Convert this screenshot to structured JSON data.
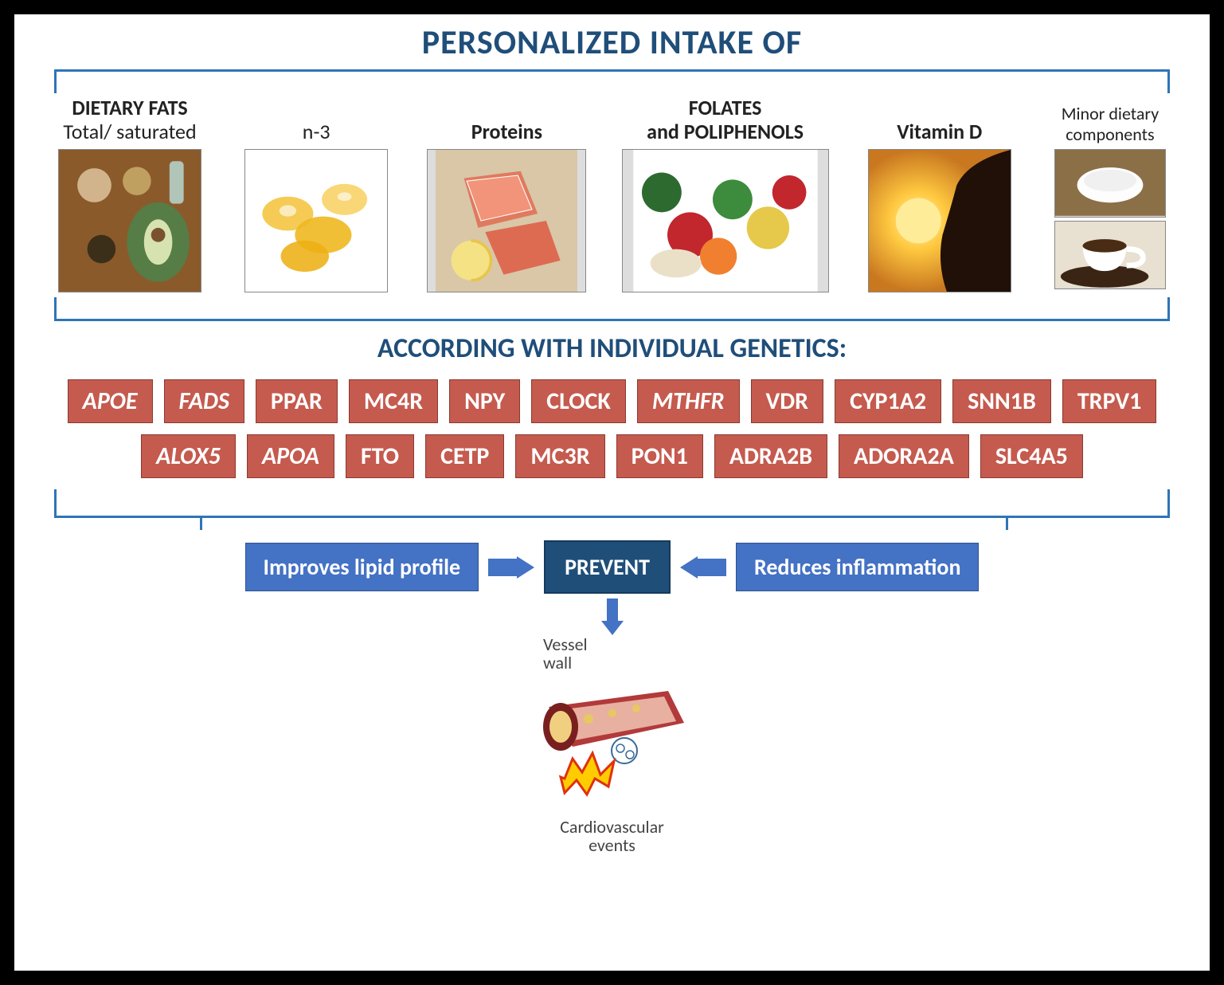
{
  "title": "PERSONALIZED INTAKE OF",
  "food_categories": [
    {
      "group": "DIETARY FATS",
      "label": "Total/ saturated",
      "img": "fats"
    },
    {
      "group": "",
      "label": "n-3",
      "img": "n3"
    },
    {
      "group": "",
      "bold": "Proteins",
      "img": "proteins"
    },
    {
      "group": "",
      "bold": "FOLATES",
      "sub": "and POLIPHENOLS",
      "img": "folates"
    },
    {
      "group": "",
      "bold": "Vitamin D",
      "img": "vitd"
    },
    {
      "group": "",
      "label": "Minor dietary\ncomponents",
      "img": "minor",
      "narrow": true
    }
  ],
  "subheading": "ACCORDING WITH INDIVIDUAL GENETICS:",
  "genes_row1": [
    {
      "t": "APOE",
      "i": true
    },
    {
      "t": "FADS",
      "i": true
    },
    {
      "t": "PPAR"
    },
    {
      "t": "MC4R"
    },
    {
      "t": "NPY"
    },
    {
      "t": "CLOCK"
    },
    {
      "t": "MTHFR",
      "i": true
    },
    {
      "t": "VDR"
    },
    {
      "t": "CYP1A2"
    },
    {
      "t": "SNN1B"
    },
    {
      "t": "TRPV1"
    }
  ],
  "genes_row2": [
    {
      "t": "ALOX5",
      "i": true
    },
    {
      "t": "APOA",
      "i": true
    },
    {
      "t": "FTO"
    },
    {
      "t": "CETP"
    },
    {
      "t": "MC3R"
    },
    {
      "t": "PON1"
    },
    {
      "t": "ADRA2B"
    },
    {
      "t": "ADORA2A"
    },
    {
      "t": "SLC4A5"
    }
  ],
  "outcomes": {
    "left": "Improves lipid profile",
    "center": "PREVENT",
    "right": "Reduces inflammation"
  },
  "vessel": {
    "wall": "Vessel\nwall",
    "events": "Cardiovascular\nevents"
  },
  "colors": {
    "title": "#1f4e79",
    "bracket": "#2e75b6",
    "gene_bg": "#c55a4e",
    "outcome_bg": "#4472c4",
    "prevent_bg": "#1f4e79"
  }
}
